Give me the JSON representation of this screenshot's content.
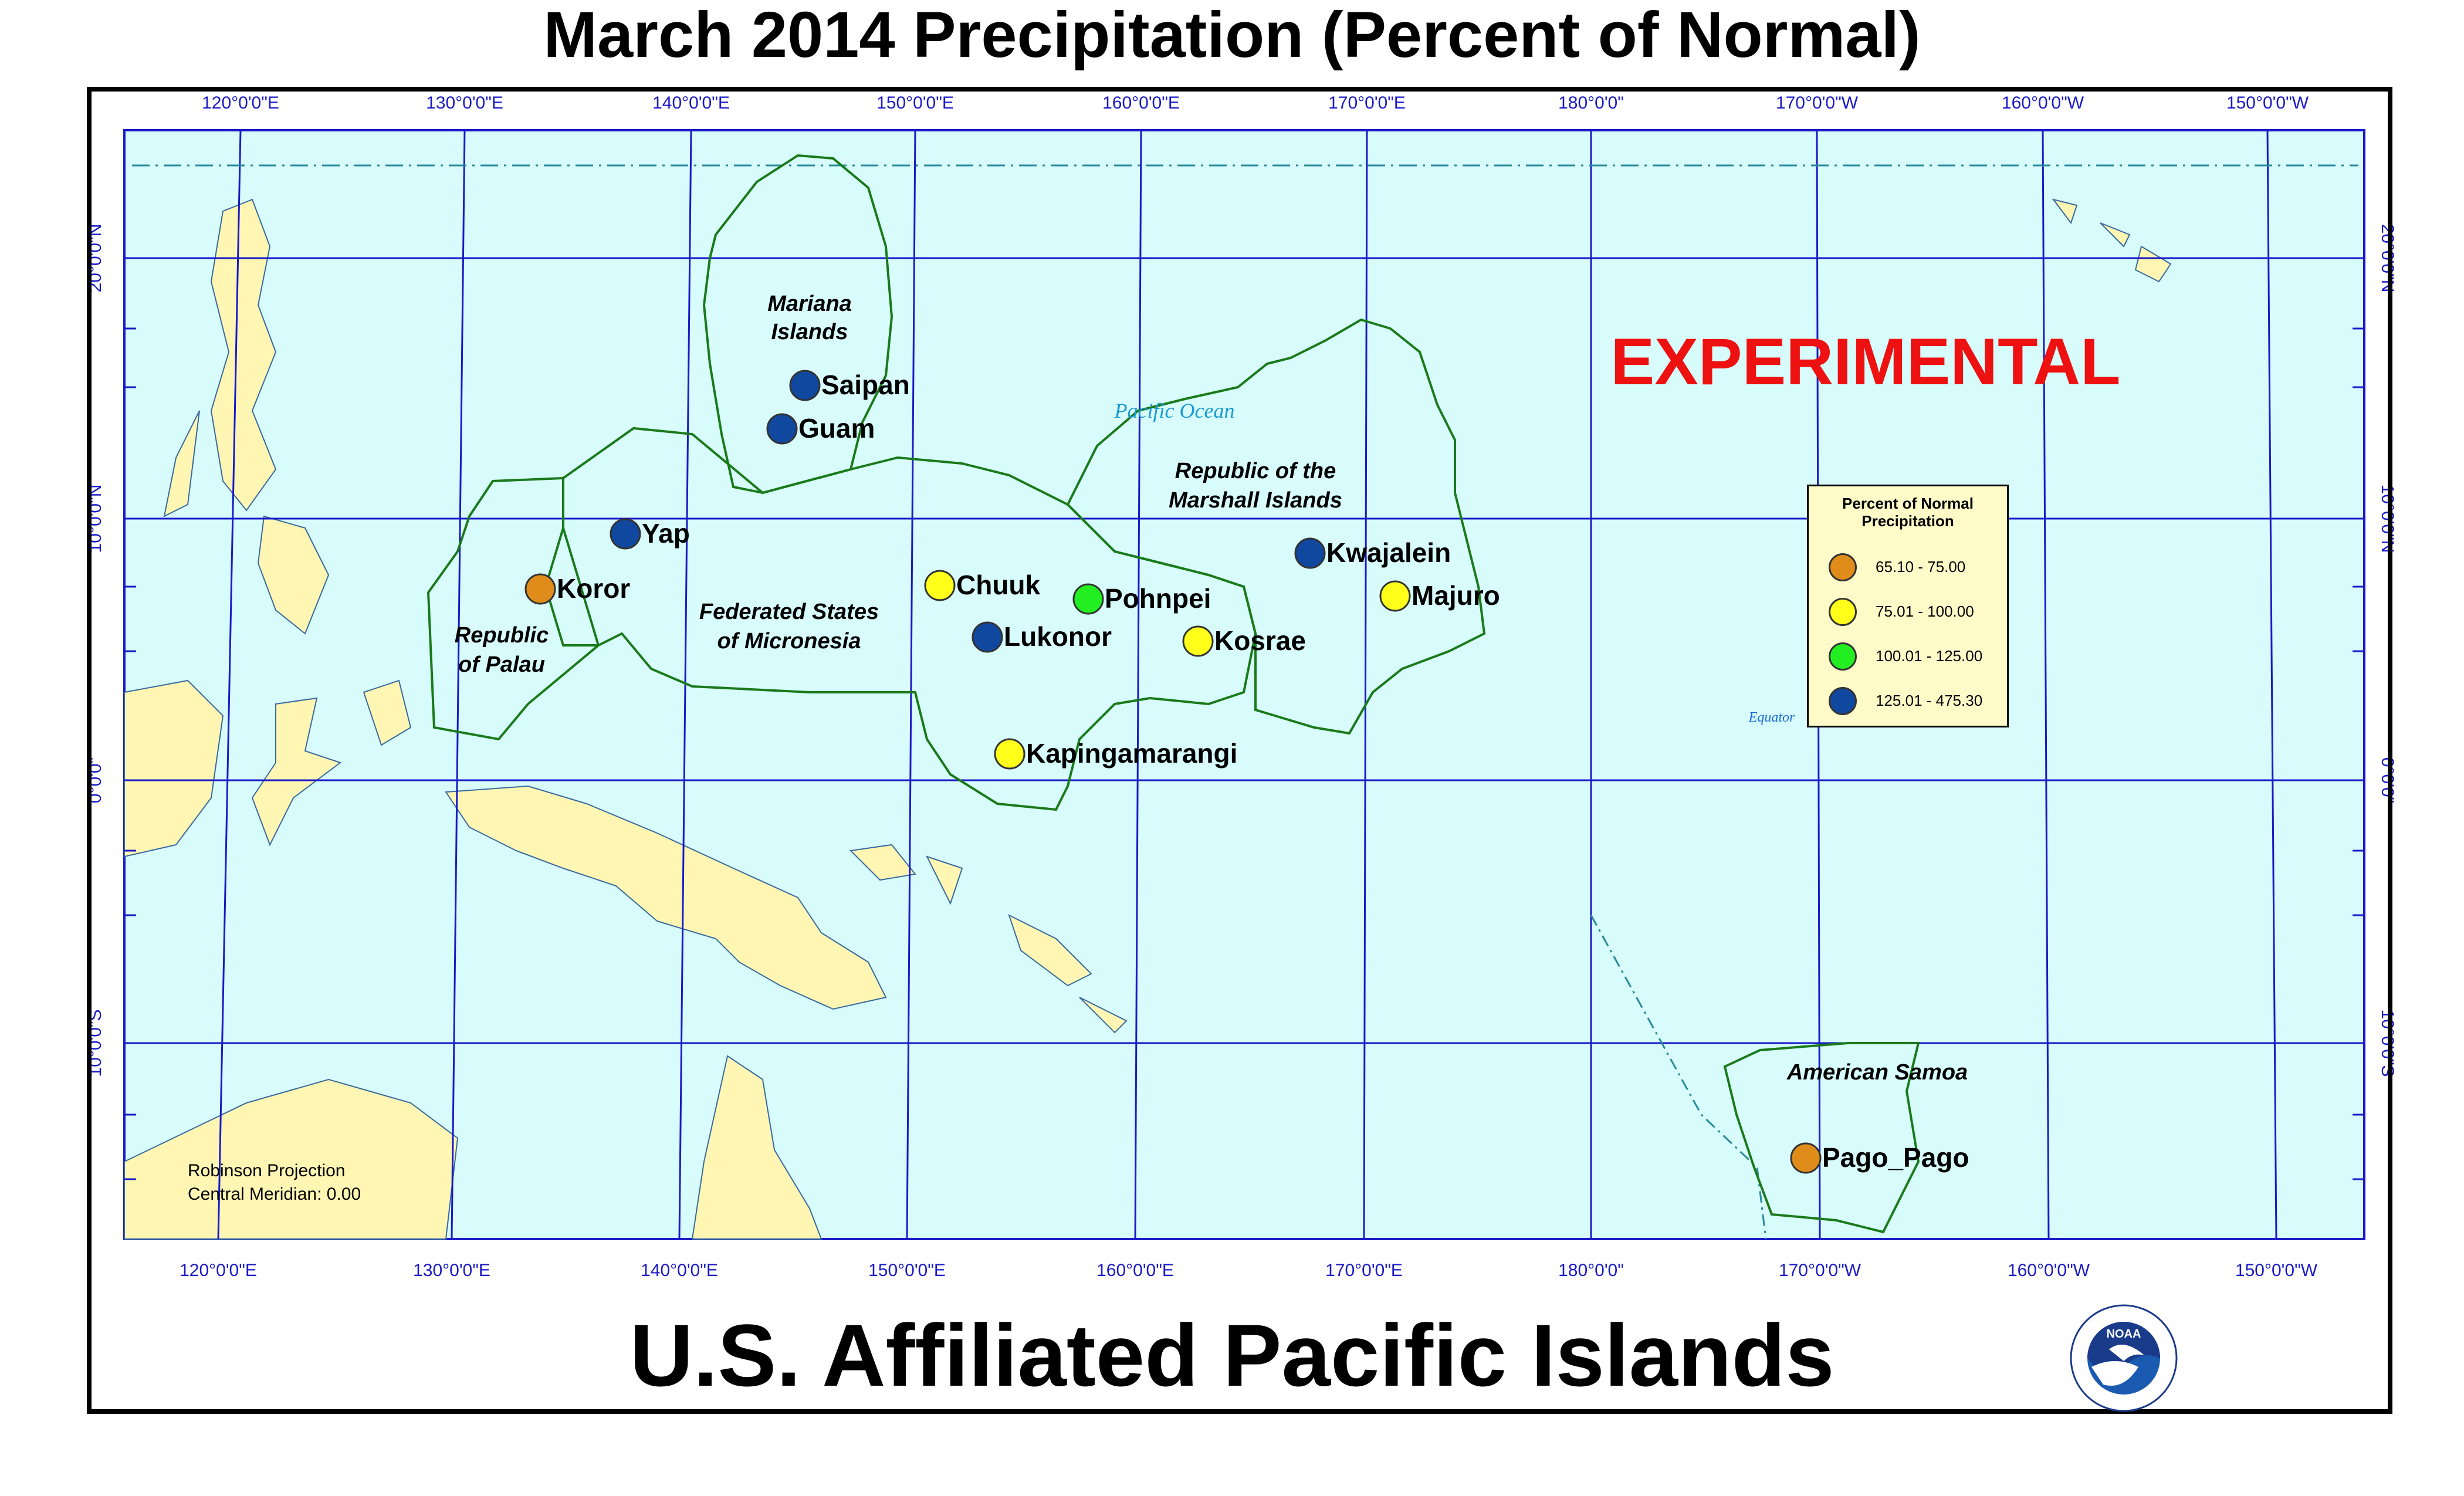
{
  "title": "March 2014 Precipitation (Percent of Normal)",
  "subtitle": "U.S. Affiliated Pacific Islands",
  "experimental": "EXPERIMENTAL",
  "ocean_label": "Pacific Ocean",
  "equator_label": "Equator",
  "projection": {
    "line1": "Robinson Projection",
    "line2": "Central Meridian: 0.00"
  },
  "regions": {
    "mariana": [
      "Mariana",
      "Islands"
    ],
    "marshall": [
      "Republic of the",
      "Marshall Islands"
    ],
    "fsm": [
      "Federated States",
      "of Micronesia"
    ],
    "palau": [
      "Republic",
      "of Palau"
    ],
    "samoa": "American Samoa"
  },
  "lon_labels": [
    "120°0'0\"E",
    "130°0'0\"E",
    "140°0'0\"E",
    "150°0'0\"E",
    "160°0'0\"E",
    "170°0'0\"E",
    "180°0'0\"",
    "170°0'0\"W",
    "160°0'0\"W",
    "150°0'0\"W"
  ],
  "lat_labels": [
    "20°0'0\"N",
    "10°0'0\"N",
    "0°0'0\"",
    "10°0'0\"S"
  ],
  "legend": {
    "title_line1": "Percent of Normal",
    "title_line2": "Precipitation",
    "items": [
      {
        "label": "65.10 - 75.00",
        "color": "#e08c1a"
      },
      {
        "label": "75.01 - 100.00",
        "color": "#ffff1a"
      },
      {
        "label": "100.01 - 125.00",
        "color": "#22ee22"
      },
      {
        "label": "125.01 - 475.30",
        "color": "#1048a0"
      }
    ]
  },
  "stations": [
    {
      "name": "Saipan",
      "class": 3
    },
    {
      "name": "Guam",
      "class": 3
    },
    {
      "name": "Yap",
      "class": 3
    },
    {
      "name": "Koror",
      "class": 0
    },
    {
      "name": "Chuuk",
      "class": 1
    },
    {
      "name": "Pohnpei",
      "class": 2
    },
    {
      "name": "Lukonor",
      "class": 3
    },
    {
      "name": "Kosrae",
      "class": 1
    },
    {
      "name": "Kwajalein",
      "class": 3
    },
    {
      "name": "Majuro",
      "class": 1
    },
    {
      "name": "Kapingamarangi",
      "class": 1
    },
    {
      "name": "Pago_Pago",
      "class": 0
    }
  ],
  "colors": {
    "ocean": "#d8fcfc",
    "land": "#fff6b4",
    "grid": "#1a1ac8",
    "boundary": "#1a7a1a",
    "experimental": "#ee1111"
  }
}
